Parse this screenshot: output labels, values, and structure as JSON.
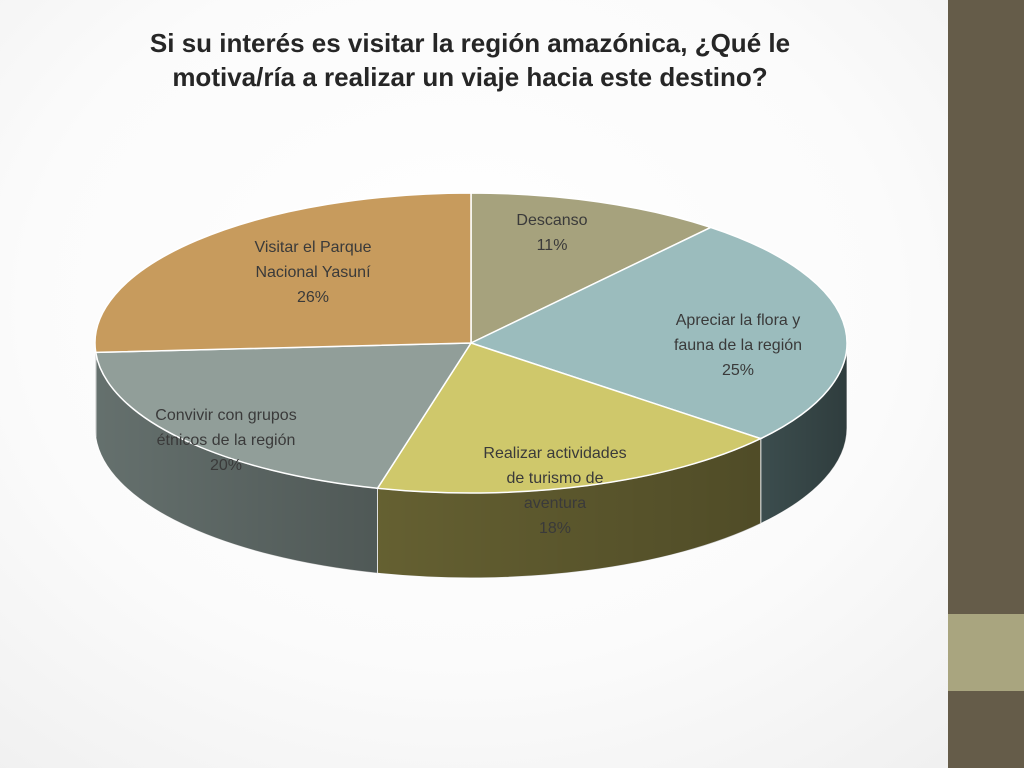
{
  "title": "Si su interés es visitar la región amazónica, ¿Qué le motiva/ría a realizar un viaje hacia este destino?",
  "chart_data": {
    "type": "pie",
    "title": "Si su interés es visitar la región amazónica, ¿Qué le motiva/ría a realizar un viaje hacia este destino?",
    "slices": [
      {
        "label": "Descanso",
        "value": 11,
        "value_label": "11%",
        "color": "#a6a27d",
        "side_color": "#7d7a5c"
      },
      {
        "label": "Apreciar la flora y fauna de la región",
        "value": 25,
        "value_label": "25%",
        "color": "#9bbcbd",
        "side_color": "#3f5152"
      },
      {
        "label": "Realizar actividades de turismo de aventura",
        "value": 18,
        "value_label": "18%",
        "color": "#cfc86b",
        "side_color": "#6a6534"
      },
      {
        "label": "Convivir con grupos étnicos de la región",
        "value": 20,
        "value_label": "20%",
        "color": "#919e99",
        "side_color": "#6a7673"
      },
      {
        "label": "Visitar el Parque Nacional Yasuní",
        "value": 26,
        "value_label": "26%",
        "color": "#c79b5d",
        "side_color": "#8d6c40"
      }
    ]
  }
}
